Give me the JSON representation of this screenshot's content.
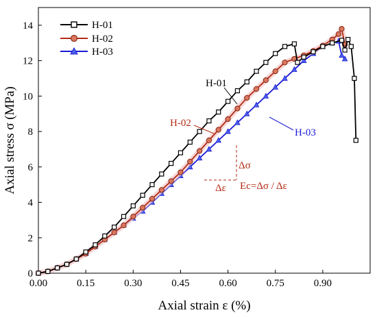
{
  "chart_data": {
    "type": "line",
    "xlabel": "Axial strain ε (%)",
    "ylabel": "Axial stress σ (MPa)",
    "xlim": [
      0,
      1.05
    ],
    "ylim": [
      0,
      15
    ],
    "x_ticks": [
      "0.00",
      "0.15",
      "0.30",
      "0.45",
      "0.60",
      "0.75",
      "0.90"
    ],
    "y_ticks": [
      "0",
      "2",
      "4",
      "6",
      "8",
      "10",
      "12",
      "14"
    ],
    "legend_position": "top-left",
    "series": [
      {
        "name": "H-01",
        "color": "#000000",
        "marker": "square",
        "points": [
          [
            0,
            0
          ],
          [
            0.03,
            0.1
          ],
          [
            0.06,
            0.3
          ],
          [
            0.09,
            0.5
          ],
          [
            0.12,
            0.8
          ],
          [
            0.15,
            1.2
          ],
          [
            0.18,
            1.6
          ],
          [
            0.21,
            2.1
          ],
          [
            0.24,
            2.6
          ],
          [
            0.27,
            3.2
          ],
          [
            0.3,
            3.8
          ],
          [
            0.33,
            4.4
          ],
          [
            0.36,
            5.0
          ],
          [
            0.39,
            5.6
          ],
          [
            0.42,
            6.2
          ],
          [
            0.45,
            6.8
          ],
          [
            0.48,
            7.4
          ],
          [
            0.51,
            8.0
          ],
          [
            0.54,
            8.6
          ],
          [
            0.57,
            9.1
          ],
          [
            0.6,
            9.7
          ],
          [
            0.63,
            10.3
          ],
          [
            0.66,
            10.8
          ],
          [
            0.69,
            11.4
          ],
          [
            0.72,
            11.9
          ],
          [
            0.75,
            12.4
          ],
          [
            0.78,
            12.8
          ],
          [
            0.81,
            12.95
          ],
          [
            0.82,
            11.9
          ],
          [
            0.84,
            12.2
          ],
          [
            0.87,
            12.5
          ],
          [
            0.9,
            12.8
          ],
          [
            0.93,
            13.0
          ],
          [
            0.96,
            13.15
          ],
          [
            0.97,
            12.6
          ],
          [
            0.98,
            13.2
          ],
          [
            0.99,
            12.8
          ],
          [
            1.0,
            11.0
          ],
          [
            1.005,
            7.5
          ]
        ]
      },
      {
        "name": "H-02",
        "color": "#b22a12",
        "marker": "circle",
        "points": [
          [
            0,
            0
          ],
          [
            0.03,
            0.1
          ],
          [
            0.06,
            0.3
          ],
          [
            0.09,
            0.5
          ],
          [
            0.12,
            0.8
          ],
          [
            0.15,
            1.1
          ],
          [
            0.18,
            1.5
          ],
          [
            0.21,
            1.9
          ],
          [
            0.24,
            2.3
          ],
          [
            0.27,
            2.7
          ],
          [
            0.3,
            3.2
          ],
          [
            0.33,
            3.7
          ],
          [
            0.36,
            4.2
          ],
          [
            0.39,
            4.7
          ],
          [
            0.42,
            5.2
          ],
          [
            0.45,
            5.7
          ],
          [
            0.48,
            6.3
          ],
          [
            0.51,
            6.9
          ],
          [
            0.54,
            7.5
          ],
          [
            0.57,
            8.1
          ],
          [
            0.6,
            8.7
          ],
          [
            0.63,
            9.3
          ],
          [
            0.66,
            9.9
          ],
          [
            0.69,
            10.4
          ],
          [
            0.72,
            10.9
          ],
          [
            0.75,
            11.4
          ],
          [
            0.78,
            11.9
          ],
          [
            0.81,
            12.1
          ],
          [
            0.84,
            12.3
          ],
          [
            0.87,
            12.55
          ],
          [
            0.9,
            12.85
          ],
          [
            0.93,
            13.2
          ],
          [
            0.95,
            13.5
          ],
          [
            0.96,
            13.8
          ],
          [
            0.97,
            12.9
          ]
        ]
      },
      {
        "name": "H-03",
        "color": "#1a1ad6",
        "marker": "triangle",
        "points": [
          [
            0,
            0
          ],
          [
            0.03,
            0.1
          ],
          [
            0.06,
            0.3
          ],
          [
            0.09,
            0.5
          ],
          [
            0.12,
            0.8
          ],
          [
            0.15,
            1.1
          ],
          [
            0.18,
            1.5
          ],
          [
            0.21,
            1.9
          ],
          [
            0.24,
            2.3
          ],
          [
            0.27,
            2.7
          ],
          [
            0.3,
            3.1
          ],
          [
            0.33,
            3.5
          ],
          [
            0.36,
            4.0
          ],
          [
            0.39,
            4.5
          ],
          [
            0.42,
            5.0
          ],
          [
            0.45,
            5.5
          ],
          [
            0.48,
            6.0
          ],
          [
            0.51,
            6.5
          ],
          [
            0.54,
            7.0
          ],
          [
            0.57,
            7.5
          ],
          [
            0.6,
            8.0
          ],
          [
            0.63,
            8.5
          ],
          [
            0.66,
            9.0
          ],
          [
            0.69,
            9.5
          ],
          [
            0.72,
            10.0
          ],
          [
            0.75,
            10.5
          ],
          [
            0.78,
            11.0
          ],
          [
            0.81,
            11.5
          ],
          [
            0.84,
            12.0
          ],
          [
            0.87,
            12.4
          ],
          [
            0.9,
            12.8
          ],
          [
            0.93,
            13.0
          ],
          [
            0.95,
            13.1
          ],
          [
            0.96,
            12.3
          ],
          [
            0.97,
            12.1
          ]
        ]
      }
    ],
    "annotations": {
      "label_h01": "H-01",
      "label_h02": "H-02",
      "label_h03": "H-03",
      "delta_sigma": "Δσ",
      "delta_epsilon": "Δε",
      "ec_formula": "Ec=Δσ / Δε"
    }
  }
}
